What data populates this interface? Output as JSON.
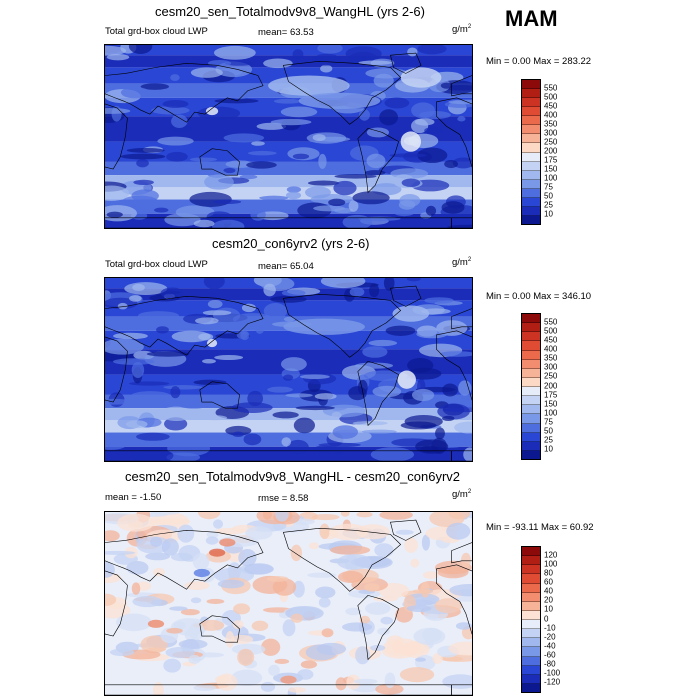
{
  "season": "MAM",
  "panels": [
    {
      "title": "cesm20_sen_Totalmodv9v8_WangHL (yrs 2-6)",
      "left_label": "Total grd-box cloud LWP",
      "center_label": "mean=  63.53",
      "units_base": "g/m",
      "units_exp": "2",
      "minmax": "Min =   0.00 Max = 283.22",
      "colorbar": {
        "labels": [
          "550",
          "500",
          "450",
          "400",
          "350",
          "300",
          "250",
          "200",
          "175",
          "150",
          "100",
          "75",
          "50",
          "25",
          "10"
        ],
        "colors": [
          "#8c0a0a",
          "#b01e14",
          "#cc3322",
          "#df4c33",
          "#ec6a4c",
          "#f38d6f",
          "#f7b397",
          "#fbd9c5",
          "#e6ecf8",
          "#c4d3f3",
          "#a0b8ee",
          "#7a98e8",
          "#4e6ee0",
          "#2a46d4",
          "#1a2cb8",
          "#0c1890"
        ]
      },
      "map_style": "lwp_sen"
    },
    {
      "title": "cesm20_con6yrv2 (yrs 2-6)",
      "left_label": "Total grd-box cloud LWP",
      "center_label": "mean=  65.04",
      "units_base": "g/m",
      "units_exp": "2",
      "minmax": "Min =   0.00 Max = 346.10",
      "colorbar": {
        "labels": [
          "550",
          "500",
          "450",
          "400",
          "350",
          "300",
          "250",
          "200",
          "175",
          "150",
          "100",
          "75",
          "50",
          "25",
          "10"
        ],
        "colors": [
          "#8c0a0a",
          "#b01e14",
          "#cc3322",
          "#df4c33",
          "#ec6a4c",
          "#f38d6f",
          "#f7b397",
          "#fbd9c5",
          "#e6ecf8",
          "#c4d3f3",
          "#a0b8ee",
          "#7a98e8",
          "#4e6ee0",
          "#2a46d4",
          "#1a2cb8",
          "#0c1890"
        ]
      },
      "map_style": "lwp_con"
    },
    {
      "title": "cesm20_sen_Totalmodv9v8_WangHL - cesm20_con6yrv2",
      "left_label": "mean =  -1.50",
      "center_label": "rmse =   8.58",
      "units_base": "g/m",
      "units_exp": "2",
      "minmax": "Min = -93.11 Max =  60.92",
      "colorbar": {
        "labels": [
          "120",
          "100",
          "80",
          "60",
          "40",
          "20",
          "10",
          "0",
          "-10",
          "-20",
          "-40",
          "-60",
          "-80",
          "-100",
          "-120"
        ],
        "colors": [
          "#8c0a0a",
          "#b01e14",
          "#cc3322",
          "#df4c33",
          "#ec6a4c",
          "#f38d6f",
          "#f7b397",
          "#fbe2d4",
          "#e8eef9",
          "#c4d3f3",
          "#a0b8ee",
          "#7a98e8",
          "#4e6ee0",
          "#2a46d4",
          "#1a2cb8",
          "#0c1890"
        ]
      },
      "map_style": "diff"
    }
  ]
}
